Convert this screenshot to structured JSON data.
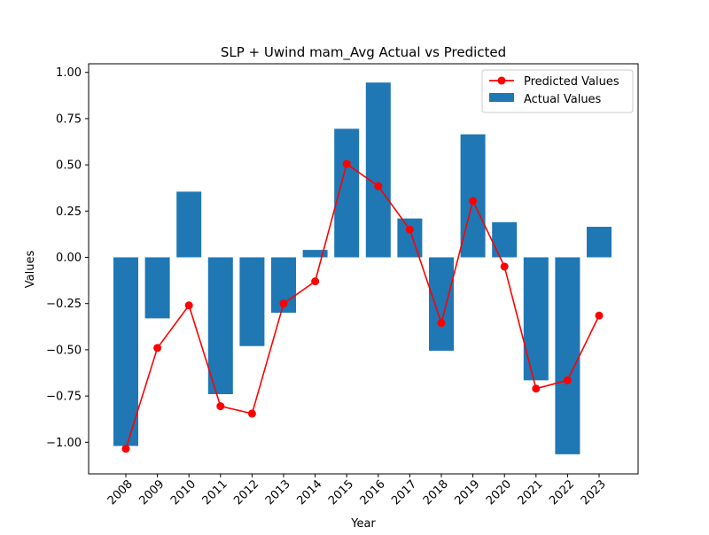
{
  "chart_data": {
    "type": "bar",
    "title": "SLP + Uwind mam_Avg Actual vs Predicted",
    "xlabel": "Year",
    "ylabel": "Values",
    "ylim": [
      -1.15,
      1.05
    ],
    "yticks": [
      1.0,
      0.75,
      0.5,
      0.25,
      0.0,
      -0.25,
      -0.5,
      -0.75,
      -1.0
    ],
    "ytick_labels": [
      "1.00",
      "0.75",
      "0.50",
      "0.25",
      "0.00",
      "−0.25",
      "−0.50",
      "−0.75",
      "−1.00"
    ],
    "categories": [
      "2008",
      "2009",
      "2010",
      "2011",
      "2012",
      "2013",
      "2014",
      "2015",
      "2016",
      "2017",
      "2018",
      "2019",
      "2020",
      "2021",
      "2022",
      "2023"
    ],
    "grid": false,
    "legend_position": "top-right",
    "series": [
      {
        "name": "Actual Values",
        "kind": "bar",
        "color": "#1f77b4",
        "values": [
          -1.02,
          -0.33,
          0.355,
          -0.74,
          -0.48,
          -0.3,
          0.04,
          0.695,
          0.945,
          0.21,
          -0.505,
          0.665,
          0.19,
          -0.665,
          -1.065,
          0.165
        ]
      },
      {
        "name": "Predicted Values",
        "kind": "line",
        "color": "#ff0000",
        "values": [
          -1.035,
          -0.49,
          -0.26,
          -0.805,
          -0.845,
          -0.25,
          -0.13,
          0.505,
          0.385,
          0.15,
          -0.355,
          0.305,
          -0.05,
          -0.71,
          -0.665,
          -0.315
        ]
      }
    ]
  }
}
